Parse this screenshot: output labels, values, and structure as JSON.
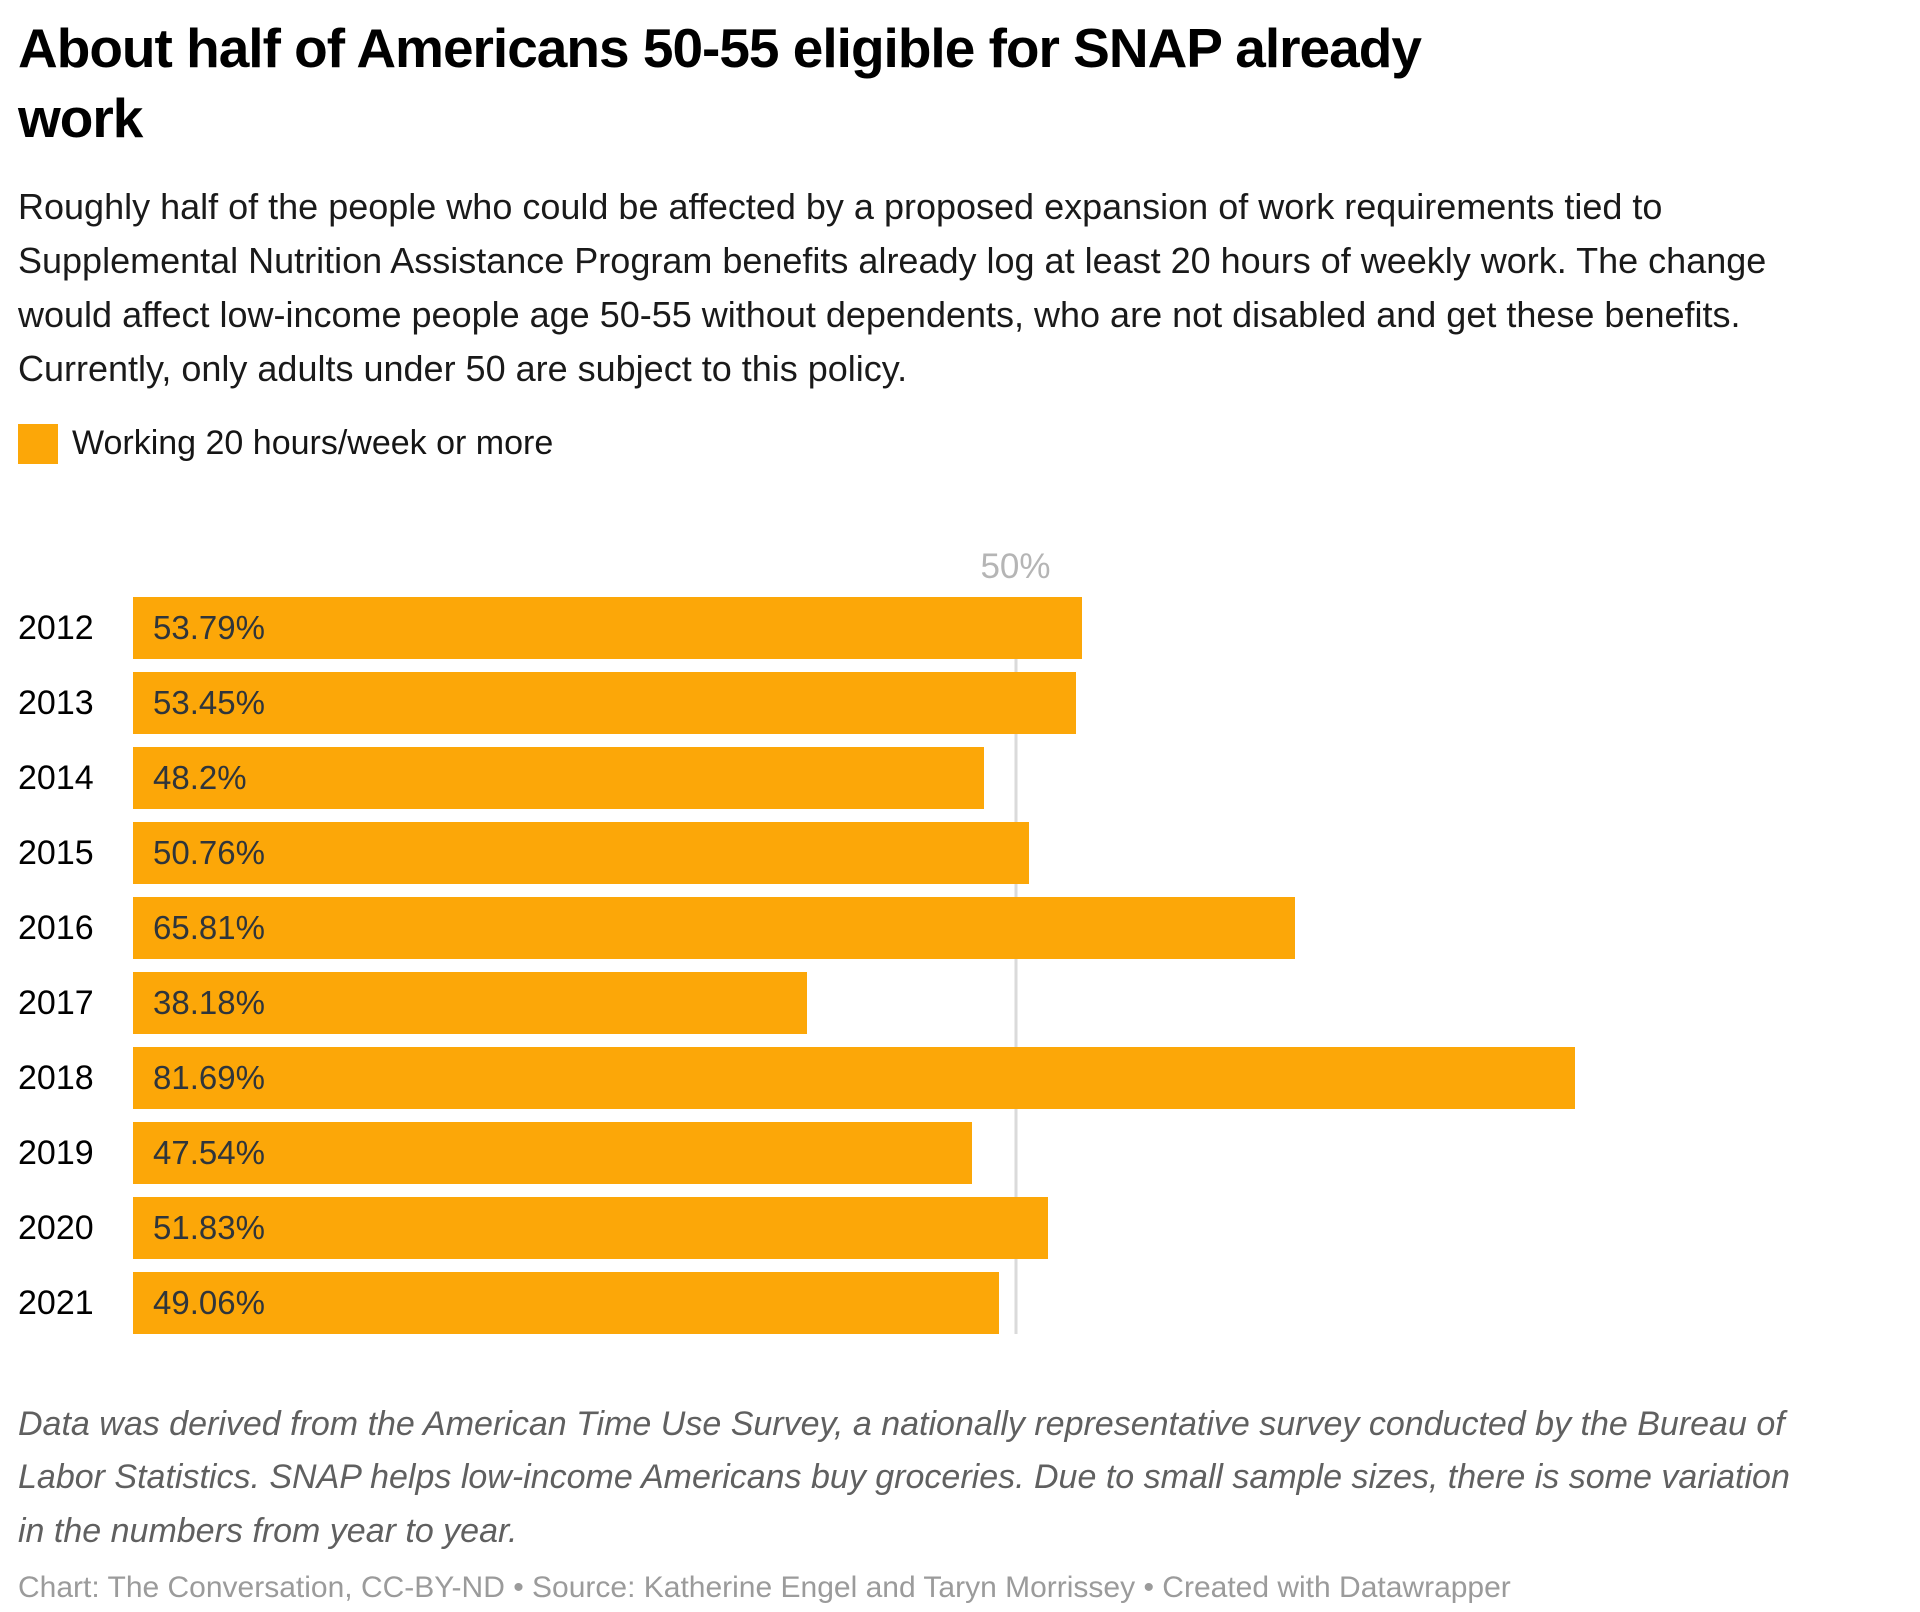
{
  "header": {
    "title_lines": [
      "About half of Americans 50-55 eligible for SNAP already",
      "work"
    ],
    "description": "Roughly half of the people who could be affected by a proposed expansion of work requirements tied to Supplemental Nutrition Assistance Program benefits already log at least 20 hours of weekly work. The change would affect low-income people age 50-55 without dependents, who are not disabled and get these benefits. Currently, only adults under 50 are subject to this policy."
  },
  "chart_data": {
    "type": "bar",
    "orientation": "horizontal",
    "title": "About half of Americans 50-55 eligible for SNAP already work",
    "legend": [
      {
        "label": "Working 20 hours/week or more",
        "color": "#FCA708"
      }
    ],
    "categories": [
      "2012",
      "2013",
      "2014",
      "2015",
      "2016",
      "2017",
      "2018",
      "2019",
      "2020",
      "2021"
    ],
    "values": [
      53.79,
      53.45,
      48.2,
      50.76,
      65.81,
      38.18,
      81.69,
      47.54,
      51.83,
      49.06
    ],
    "value_labels": [
      "53.79%",
      "53.45%",
      "48.2%",
      "50.76%",
      "65.81%",
      "38.18%",
      "81.69%",
      "47.54%",
      "51.83%",
      "49.06%"
    ],
    "xlabel": "",
    "ylabel": "",
    "axis": {
      "tick_label": "50%",
      "tick_value": 50,
      "xlim": [
        0,
        100
      ],
      "grid": "single vertical gridline at 50%",
      "legend_position": "top-left"
    }
  },
  "footer": {
    "notes": "Data was derived from the American Time Use Survey, a nationally representative survey conducted by the Bureau of Labor Statistics. SNAP helps low-income Americans buy groceries. Due to small sample sizes, there is some variation in the numbers from year to year.",
    "byline": "Chart: The Conversation, CC-BY-ND • Source: Katherine Engel and Taryn Morrissey • Created with Datawrapper"
  },
  "colors": {
    "bar": "#FCA708",
    "value_label": "#2F353B",
    "year_label": "#000000",
    "tick_label": "#B5B5B5",
    "gridline": "#DADADA",
    "title": "#000000",
    "description": "#1A1A1A",
    "notes": "#606060",
    "byline": "#9B9B9B"
  }
}
